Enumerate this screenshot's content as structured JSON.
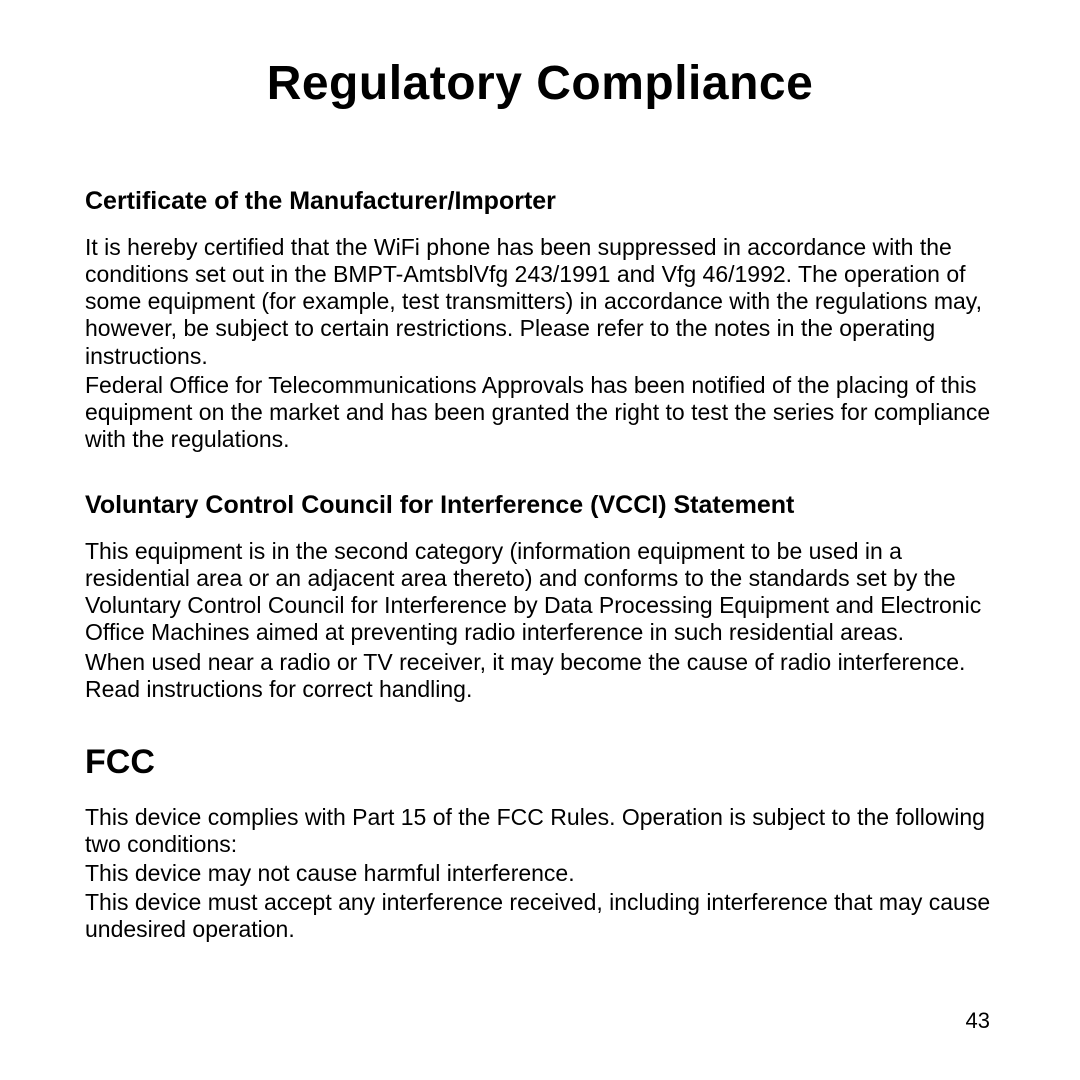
{
  "page": {
    "title": "Regulatory Compliance",
    "pageNumber": "43"
  },
  "sections": {
    "cert": {
      "heading": "Certificate of the Manufacturer/Importer",
      "p1": "It is hereby certified that the WiFi phone has been suppressed in accordance with the conditions set out in the BMPT-AmtsblVfg 243/1991 and Vfg 46/1992. The operation of some equipment (for example, test transmitters) in accordance with the regulations may, however, be subject to certain restrictions. Please refer to the notes in the operating instructions.",
      "p2": "Federal Office for Telecommunications Approvals has been notified of the placing of this equipment on the market and has been granted the right to test the series for compliance with the regulations."
    },
    "vcci": {
      "heading": "Voluntary Control Council for Interference (VCCI) Statement",
      "p1": "This equipment is in the second category (information equipment to be used in a residential area or an adjacent area thereto) and conforms to the standards set by the Voluntary Control Council for Interference by Data Processing Equipment and Electronic Office Machines aimed at preventing radio interference in such residential areas.",
      "p2": "When used near a radio or TV receiver, it may become the cause of radio interference. Read instructions for correct handling."
    },
    "fcc": {
      "heading": "FCC",
      "p1": "This device complies with Part 15 of the FCC Rules. Operation is subject to the following two conditions:",
      "p2": "This device may not cause harmful interference.",
      "p3": "This device must accept any interference received, including interference that may cause undesired operation."
    }
  }
}
